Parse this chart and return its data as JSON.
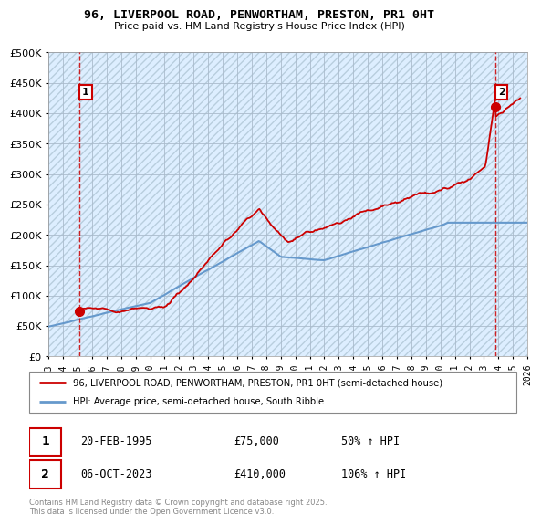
{
  "title": "96, LIVERPOOL ROAD, PENWORTHAM, PRESTON, PR1 0HT",
  "subtitle": "Price paid vs. HM Land Registry's House Price Index (HPI)",
  "background_color": "#ffffff",
  "plot_bg_color": "#ddeeff",
  "hatch_color": "#c8ddf0",
  "grid_color": "#aabbcc",
  "sale1_year": 1995.12,
  "sale1_price": 75000,
  "sale2_year": 2023.76,
  "sale2_price": 410000,
  "hpi_label": "HPI: Average price, semi-detached house, South Ribble",
  "sale_label": "96, LIVERPOOL ROAD, PENWORTHAM, PRESTON, PR1 0HT (semi-detached house)",
  "info1_date": "20-FEB-1995",
  "info1_price": "£75,000",
  "info1_hpi": "50% ↑ HPI",
  "info2_date": "06-OCT-2023",
  "info2_price": "£410,000",
  "info2_hpi": "106% ↑ HPI",
  "copyright": "Contains HM Land Registry data © Crown copyright and database right 2025.\nThis data is licensed under the Open Government Licence v3.0.",
  "xmin": 1993,
  "xmax": 2026,
  "ymin": 0,
  "ymax": 500000,
  "red_color": "#cc0000",
  "blue_color": "#6699cc"
}
